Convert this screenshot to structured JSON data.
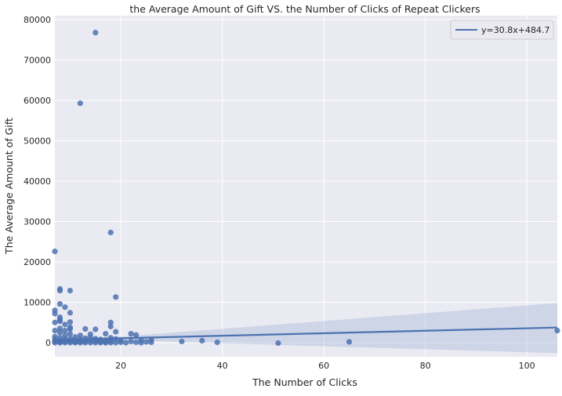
{
  "chart_data": {
    "type": "scatter",
    "title": "the Average Amount of Gift VS. the Number of Clicks of Repeat Clickers",
    "xlabel": "The Number of Clicks",
    "ylabel": "The Average Amount of Gift",
    "xlim": [
      7,
      106
    ],
    "ylim": [
      -3500,
      81000
    ],
    "xticks": [
      20,
      40,
      60,
      80,
      100
    ],
    "yticks": [
      0,
      10000,
      20000,
      30000,
      40000,
      50000,
      60000,
      70000,
      80000
    ],
    "grid": true,
    "legend": {
      "position": "top-right",
      "entries": [
        "y=30.8x+484.7"
      ]
    },
    "colors": {
      "points": "#4c72b0",
      "line": "#4c72b0",
      "band": "#9aaed4",
      "background": "#eaeaf2",
      "grid": "#ffffff"
    },
    "regression": {
      "slope": 30.8,
      "intercept": 484.7,
      "label": "y=30.8x+484.7"
    },
    "confidence_band": [
      {
        "x": 7,
        "low": -300,
        "high": 500
      },
      {
        "x": 20,
        "low": 600,
        "high": 1500
      },
      {
        "x": 106,
        "low": -2600,
        "high": 9800
      }
    ],
    "points": [
      [
        7,
        22600
      ],
      [
        7,
        8000
      ],
      [
        7,
        7200
      ],
      [
        7,
        5000
      ],
      [
        7,
        3000
      ],
      [
        7,
        1500
      ],
      [
        7,
        800
      ],
      [
        7,
        300
      ],
      [
        7,
        0
      ],
      [
        8,
        13300
      ],
      [
        8,
        12900
      ],
      [
        8,
        9600
      ],
      [
        8,
        6300
      ],
      [
        8,
        5700
      ],
      [
        8,
        5300
      ],
      [
        8,
        3500
      ],
      [
        8,
        2500
      ],
      [
        8,
        1200
      ],
      [
        8,
        500
      ],
      [
        8,
        100
      ],
      [
        8,
        0
      ],
      [
        9,
        8800
      ],
      [
        9,
        4500
      ],
      [
        9,
        3000
      ],
      [
        9,
        1800
      ],
      [
        9,
        900
      ],
      [
        9,
        300
      ],
      [
        9,
        0
      ],
      [
        10,
        12900
      ],
      [
        10,
        7400
      ],
      [
        10,
        5100
      ],
      [
        10,
        3800
      ],
      [
        10,
        3400
      ],
      [
        10,
        2200
      ],
      [
        10,
        1000
      ],
      [
        10,
        400
      ],
      [
        10,
        0
      ],
      [
        11,
        1400
      ],
      [
        11,
        600
      ],
      [
        11,
        200
      ],
      [
        11,
        0
      ],
      [
        12,
        59300
      ],
      [
        12,
        1800
      ],
      [
        12,
        800
      ],
      [
        12,
        200
      ],
      [
        12,
        0
      ],
      [
        13,
        3400
      ],
      [
        13,
        1100
      ],
      [
        13,
        400
      ],
      [
        13,
        0
      ],
      [
        14,
        2100
      ],
      [
        14,
        1300
      ],
      [
        14,
        500
      ],
      [
        14,
        0
      ],
      [
        15,
        76800
      ],
      [
        15,
        3300
      ],
      [
        15,
        1000
      ],
      [
        15,
        300
      ],
      [
        15,
        0
      ],
      [
        16,
        800
      ],
      [
        16,
        300
      ],
      [
        16,
        0
      ],
      [
        17,
        2200
      ],
      [
        17,
        600
      ],
      [
        17,
        100
      ],
      [
        17,
        0
      ],
      [
        18,
        27300
      ],
      [
        18,
        5000
      ],
      [
        18,
        4000
      ],
      [
        18,
        1200
      ],
      [
        18,
        400
      ],
      [
        18,
        0
      ],
      [
        19,
        11300
      ],
      [
        19,
        2700
      ],
      [
        19,
        900
      ],
      [
        19,
        0
      ],
      [
        20,
        500
      ],
      [
        20,
        100
      ],
      [
        21,
        0
      ],
      [
        22,
        2200
      ],
      [
        22,
        300
      ],
      [
        23,
        1900
      ],
      [
        23,
        100
      ],
      [
        24,
        600
      ],
      [
        24,
        0
      ],
      [
        25,
        200
      ],
      [
        26,
        700
      ],
      [
        26,
        100
      ],
      [
        32,
        300
      ],
      [
        36,
        500
      ],
      [
        39,
        100
      ],
      [
        51,
        -100
      ],
      [
        65,
        200
      ],
      [
        106,
        3000
      ]
    ]
  }
}
